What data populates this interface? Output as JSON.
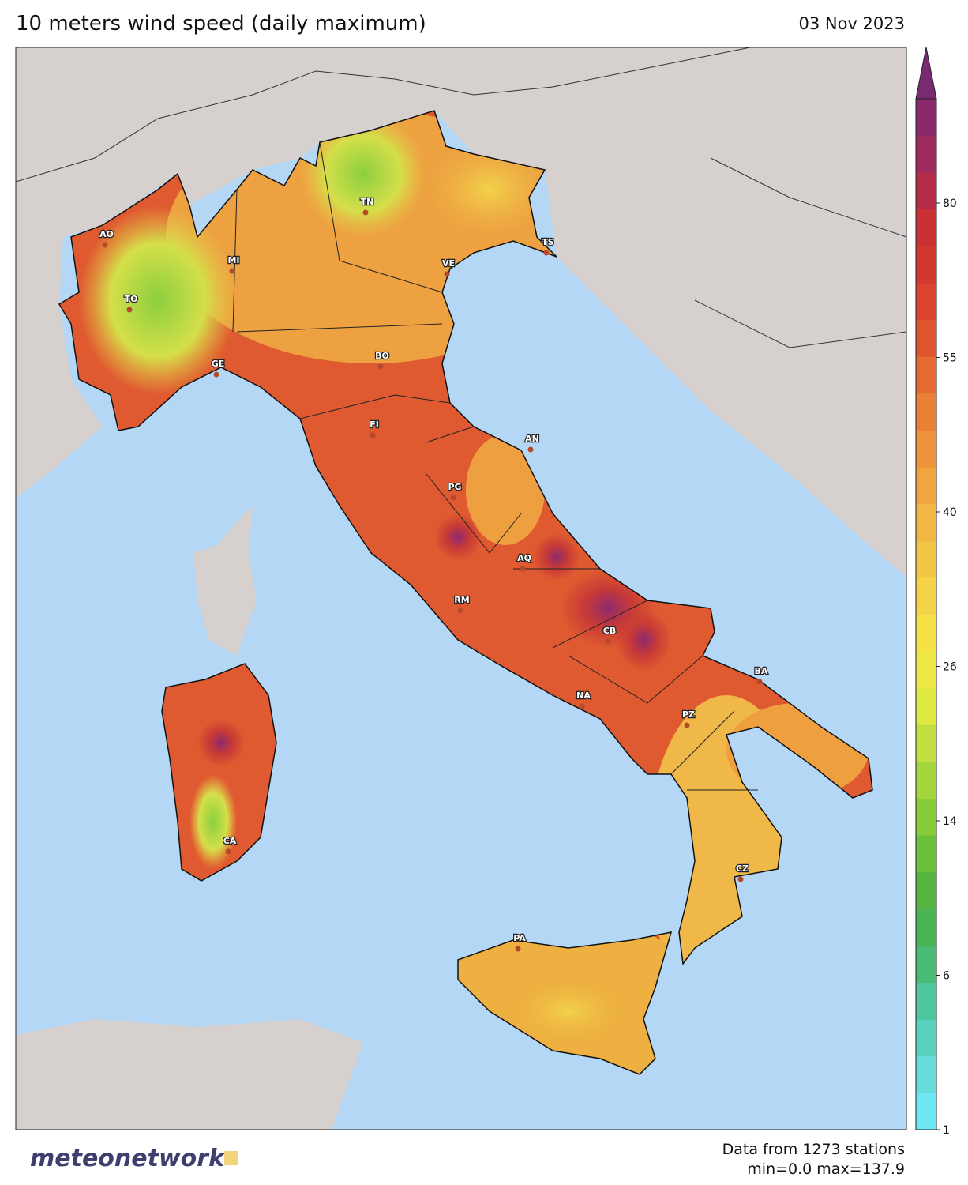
{
  "title": "10 meters wind speed (daily maximum)",
  "date": "03 Nov 2023",
  "cities": [
    "AO",
    "TO",
    "MI",
    "GE",
    "TN",
    "VE",
    "TS",
    "BO",
    "FI",
    "AN",
    "PG",
    "AQ",
    "RM",
    "CB",
    "BA",
    "NA",
    "PZ",
    "CA",
    "CZ",
    "PA"
  ],
  "colorbar": {
    "ticks": [
      1,
      6,
      14,
      26,
      40,
      55,
      80
    ]
  },
  "footer": {
    "stations": "Data from 1273 stations",
    "range": "min=0.0 max=137.9"
  },
  "logo": "meteonetwork"
}
